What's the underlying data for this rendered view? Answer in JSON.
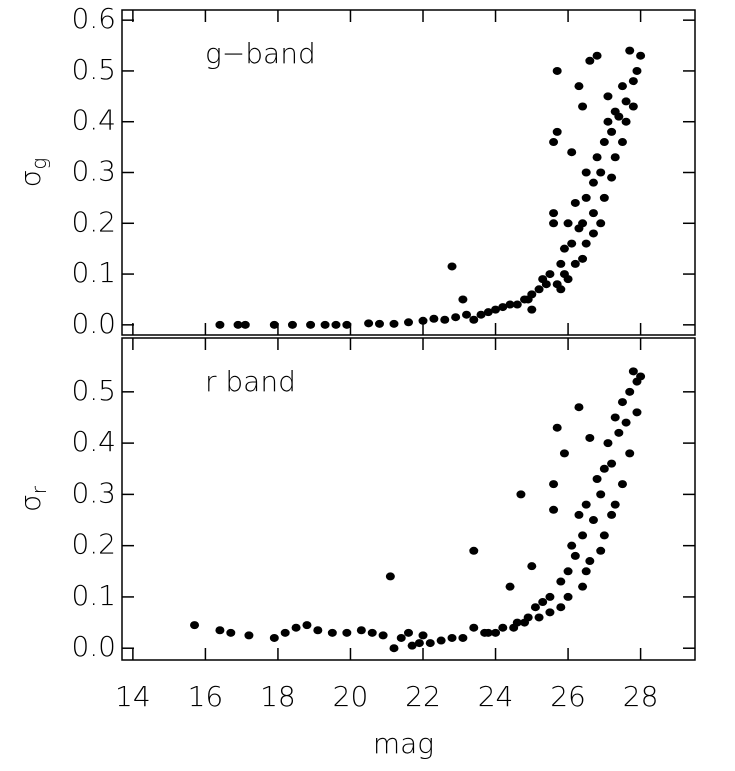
{
  "chart_data": [
    {
      "type": "scatter",
      "annotation": "g−band",
      "ylabel": {
        "symbol": "σ",
        "subscript": "g"
      },
      "color": "#000000",
      "xlim": [
        13.7,
        29.5
      ],
      "xticks": [
        14,
        16,
        18,
        20,
        22,
        24,
        26,
        28
      ],
      "ylim": [
        -0.02,
        0.62
      ],
      "yticks": [
        {
          "value": 0,
          "label": "0.0"
        },
        0.1,
        0.2,
        0.3,
        0.4,
        0.5,
        0.6
      ],
      "x": [
        16.4,
        16.9,
        17.1,
        17.9,
        18.4,
        18.9,
        19.3,
        19.6,
        19.9,
        20.5,
        20.8,
        21.2,
        21.6,
        22.0,
        22.3,
        22.6,
        22.8,
        22.9,
        23.1,
        23.2,
        23.4,
        23.6,
        23.8,
        24.0,
        24.2,
        24.4,
        24.6,
        24.8,
        25.0,
        25.2,
        25.4,
        25.5,
        25.6,
        25.6,
        25.7,
        25.7,
        25.8,
        25.9,
        26.0,
        26.1,
        26.2,
        26.3,
        26.3,
        26.4,
        26.5,
        26.5,
        26.6,
        26.7,
        26.7,
        26.8,
        26.8,
        26.9,
        27.0,
        27.1,
        27.1,
        27.2,
        27.3,
        27.4,
        27.5,
        27.6,
        27.7,
        27.8,
        27.9,
        28.0,
        26.2,
        26.0,
        25.8,
        26.5,
        27.0,
        27.3,
        27.6,
        25.3,
        24.9,
        26.9,
        27.5,
        27.8,
        26.4,
        25.9,
        27.2,
        26.7,
        25.7,
        25.0,
        25.6,
        26.1,
        26.4
      ],
      "y": [
        0,
        0,
        0,
        0,
        0,
        0,
        0,
        0,
        0,
        0.003,
        0.002,
        0.002,
        0.005,
        0.008,
        0.012,
        0.01,
        0.115,
        0.015,
        0.05,
        0.02,
        0.01,
        0.02,
        0.025,
        0.03,
        0.035,
        0.04,
        0.04,
        0.05,
        0.06,
        0.07,
        0.08,
        0.1,
        0.22,
        0.36,
        0.38,
        0.5,
        0.12,
        0.15,
        0.2,
        0.16,
        0.24,
        0.19,
        0.47,
        0.2,
        0.25,
        0.3,
        0.52,
        0.28,
        0.22,
        0.33,
        0.53,
        0.3,
        0.36,
        0.4,
        0.45,
        0.38,
        0.42,
        0.41,
        0.47,
        0.44,
        0.54,
        0.48,
        0.5,
        0.53,
        0.12,
        0.09,
        0.07,
        0.16,
        0.25,
        0.33,
        0.4,
        0.09,
        0.05,
        0.2,
        0.36,
        0.43,
        0.13,
        0.1,
        0.29,
        0.18,
        0.08,
        0.03,
        0.2,
        0.34,
        0.43
      ]
    },
    {
      "type": "scatter",
      "annotation": "r  band",
      "ylabel": {
        "symbol": "σ",
        "subscript": "r"
      },
      "xlabel": "mag",
      "color": "#000000",
      "xlim": [
        13.7,
        29.5
      ],
      "xticks": [
        14,
        16,
        18,
        20,
        22,
        24,
        26,
        28
      ],
      "ylim": [
        -0.023,
        0.605
      ],
      "yticks": [
        {
          "value": 0,
          "label": "0.0"
        },
        0.1,
        0.2,
        0.3,
        0.4,
        0.5
      ],
      "x": [
        15.7,
        16.4,
        16.7,
        17.2,
        17.9,
        18.2,
        18.5,
        18.8,
        19.1,
        19.5,
        19.9,
        20.3,
        20.6,
        20.9,
        21.1,
        21.2,
        21.4,
        21.6,
        21.9,
        22.2,
        22.5,
        22.8,
        23.1,
        23.4,
        23.4,
        23.7,
        24.0,
        24.2,
        24.4,
        24.6,
        24.7,
        24.9,
        25.0,
        25.1,
        25.3,
        25.5,
        25.6,
        25.6,
        25.7,
        25.8,
        25.9,
        26.0,
        26.1,
        26.2,
        26.3,
        26.3,
        26.4,
        26.5,
        26.6,
        26.7,
        26.8,
        26.9,
        27.0,
        27.1,
        27.2,
        27.3,
        27.4,
        27.5,
        27.6,
        27.7,
        27.8,
        27.9,
        28.0,
        26.0,
        25.8,
        26.5,
        27.0,
        27.5,
        25.2,
        24.8,
        26.9,
        27.3,
        27.7,
        26.4,
        25.5,
        26.6,
        27.2,
        27.9,
        24.5,
        23.8,
        22.0,
        21.7
      ],
      "y": [
        0.045,
        0.035,
        0.03,
        0.025,
        0.02,
        0.03,
        0.04,
        0.045,
        0.035,
        0.03,
        0.03,
        0.035,
        0.03,
        0.025,
        0.14,
        0.0,
        0.02,
        0.03,
        0.01,
        0.01,
        0.015,
        0.02,
        0.02,
        0.19,
        0.04,
        0.03,
        0.03,
        0.04,
        0.12,
        0.05,
        0.3,
        0.06,
        0.16,
        0.08,
        0.09,
        0.1,
        0.27,
        0.32,
        0.43,
        0.13,
        0.38,
        0.15,
        0.2,
        0.18,
        0.47,
        0.26,
        0.22,
        0.28,
        0.41,
        0.25,
        0.33,
        0.3,
        0.35,
        0.4,
        0.36,
        0.45,
        0.42,
        0.48,
        0.44,
        0.5,
        0.54,
        0.52,
        0.53,
        0.1,
        0.08,
        0.15,
        0.22,
        0.32,
        0.06,
        0.05,
        0.19,
        0.28,
        0.38,
        0.12,
        0.07,
        0.17,
        0.26,
        0.46,
        0.04,
        0.03,
        0.025,
        0.005
      ]
    }
  ]
}
